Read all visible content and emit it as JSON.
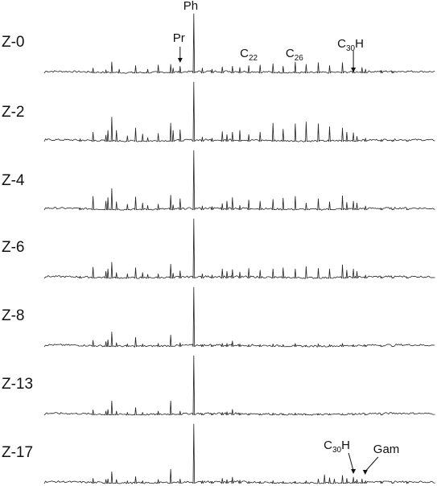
{
  "chart_data": {
    "type": "line",
    "title": "",
    "xlabel": "",
    "ylabel": "",
    "xlim": [
      0,
      100
    ],
    "ylim": [
      0,
      100
    ],
    "traces": [
      {
        "name": "Z-0",
        "peaks": [
          {
            "x": 12.5,
            "y": 10
          },
          {
            "x": 15.8,
            "y": 7
          },
          {
            "x": 17.3,
            "y": 20
          },
          {
            "x": 19.2,
            "y": 8
          },
          {
            "x": 23.4,
            "y": 14
          },
          {
            "x": 26.5,
            "y": 8
          },
          {
            "x": 29.2,
            "y": 15
          },
          {
            "x": 32.4,
            "y": 16
          },
          {
            "x": 33.0,
            "y": 10
          },
          {
            "x": 34.8,
            "y": 13
          },
          {
            "x": 38.3,
            "y": 100
          },
          {
            "x": 40.5,
            "y": 10
          },
          {
            "x": 43.0,
            "y": 8
          },
          {
            "x": 45.6,
            "y": 12
          },
          {
            "x": 48.2,
            "y": 13
          },
          {
            "x": 50.1,
            "y": 11
          },
          {
            "x": 52.4,
            "y": 14
          },
          {
            "x": 55.3,
            "y": 15
          },
          {
            "x": 58.6,
            "y": 17
          },
          {
            "x": 61.2,
            "y": 13
          },
          {
            "x": 64.3,
            "y": 20
          },
          {
            "x": 67.1,
            "y": 16
          },
          {
            "x": 70.2,
            "y": 19
          },
          {
            "x": 73.1,
            "y": 14
          },
          {
            "x": 76.4,
            "y": 19
          },
          {
            "x": 79.2,
            "y": 13
          },
          {
            "x": 81.4,
            "y": 11
          },
          {
            "x": 82.3,
            "y": 8
          },
          {
            "x": 86.4,
            "y": 6
          },
          {
            "x": 89.3,
            "y": 5
          }
        ]
      },
      {
        "name": "Z-2",
        "peaks": [
          {
            "x": 9.2,
            "y": 6
          },
          {
            "x": 12.5,
            "y": 17
          },
          {
            "x": 15.8,
            "y": 12
          },
          {
            "x": 16.3,
            "y": 20
          },
          {
            "x": 17.3,
            "y": 42
          },
          {
            "x": 18.5,
            "y": 20
          },
          {
            "x": 21.3,
            "y": 11
          },
          {
            "x": 23.4,
            "y": 24
          },
          {
            "x": 25.2,
            "y": 14
          },
          {
            "x": 26.5,
            "y": 8
          },
          {
            "x": 29.2,
            "y": 15
          },
          {
            "x": 32.4,
            "y": 32
          },
          {
            "x": 33.0,
            "y": 20
          },
          {
            "x": 34.8,
            "y": 21
          },
          {
            "x": 38.3,
            "y": 100
          },
          {
            "x": 40.5,
            "y": 9
          },
          {
            "x": 43.0,
            "y": 7
          },
          {
            "x": 45.6,
            "y": 18
          },
          {
            "x": 46.8,
            "y": 13
          },
          {
            "x": 48.2,
            "y": 17
          },
          {
            "x": 50.1,
            "y": 20
          },
          {
            "x": 52.4,
            "y": 13
          },
          {
            "x": 55.3,
            "y": 17
          },
          {
            "x": 58.6,
            "y": 32
          },
          {
            "x": 61.2,
            "y": 22
          },
          {
            "x": 64.3,
            "y": 31
          },
          {
            "x": 67.1,
            "y": 34
          },
          {
            "x": 70.2,
            "y": 31
          },
          {
            "x": 73.1,
            "y": 26
          },
          {
            "x": 76.4,
            "y": 24
          },
          {
            "x": 77.5,
            "y": 17
          },
          {
            "x": 79.2,
            "y": 16
          },
          {
            "x": 80.1,
            "y": 10
          },
          {
            "x": 82.3,
            "y": 7
          },
          {
            "x": 86.4,
            "y": 5
          },
          {
            "x": 89.3,
            "y": 4
          },
          {
            "x": 93.0,
            "y": 3
          }
        ]
      },
      {
        "name": "Z-4",
        "peaks": [
          {
            "x": 9.2,
            "y": 5
          },
          {
            "x": 12.5,
            "y": 24
          },
          {
            "x": 15.8,
            "y": 16
          },
          {
            "x": 16.3,
            "y": 22
          },
          {
            "x": 17.3,
            "y": 37
          },
          {
            "x": 18.5,
            "y": 15
          },
          {
            "x": 21.3,
            "y": 11
          },
          {
            "x": 23.4,
            "y": 23
          },
          {
            "x": 25.2,
            "y": 13
          },
          {
            "x": 26.5,
            "y": 9
          },
          {
            "x": 29.2,
            "y": 11
          },
          {
            "x": 32.4,
            "y": 26
          },
          {
            "x": 33.0,
            "y": 10
          },
          {
            "x": 34.8,
            "y": 20
          },
          {
            "x": 38.3,
            "y": 100
          },
          {
            "x": 40.5,
            "y": 8
          },
          {
            "x": 43.0,
            "y": 7
          },
          {
            "x": 45.6,
            "y": 12
          },
          {
            "x": 46.8,
            "y": 16
          },
          {
            "x": 48.2,
            "y": 22
          },
          {
            "x": 50.1,
            "y": 9
          },
          {
            "x": 52.4,
            "y": 18
          },
          {
            "x": 55.3,
            "y": 16
          },
          {
            "x": 58.6,
            "y": 19
          },
          {
            "x": 61.2,
            "y": 21
          },
          {
            "x": 64.3,
            "y": 24
          },
          {
            "x": 67.1,
            "y": 13
          },
          {
            "x": 70.2,
            "y": 20
          },
          {
            "x": 73.1,
            "y": 15
          },
          {
            "x": 76.4,
            "y": 25
          },
          {
            "x": 77.5,
            "y": 14
          },
          {
            "x": 79.2,
            "y": 16
          },
          {
            "x": 80.1,
            "y": 13
          },
          {
            "x": 82.3,
            "y": 8
          },
          {
            "x": 86.4,
            "y": 4
          },
          {
            "x": 89.3,
            "y": 3
          },
          {
            "x": 93.0,
            "y": 3
          }
        ]
      },
      {
        "name": "Z-6",
        "peaks": [
          {
            "x": 9.2,
            "y": 5
          },
          {
            "x": 12.5,
            "y": 20
          },
          {
            "x": 15.8,
            "y": 13
          },
          {
            "x": 16.3,
            "y": 17
          },
          {
            "x": 17.3,
            "y": 28
          },
          {
            "x": 18.5,
            "y": 11
          },
          {
            "x": 21.3,
            "y": 9
          },
          {
            "x": 23.4,
            "y": 19
          },
          {
            "x": 25.2,
            "y": 11
          },
          {
            "x": 26.5,
            "y": 8
          },
          {
            "x": 29.2,
            "y": 9
          },
          {
            "x": 32.4,
            "y": 25
          },
          {
            "x": 33.0,
            "y": 10
          },
          {
            "x": 34.8,
            "y": 14
          },
          {
            "x": 38.3,
            "y": 100
          },
          {
            "x": 40.5,
            "y": 9
          },
          {
            "x": 43.0,
            "y": 7
          },
          {
            "x": 45.6,
            "y": 17
          },
          {
            "x": 46.8,
            "y": 13
          },
          {
            "x": 48.2,
            "y": 16
          },
          {
            "x": 50.1,
            "y": 12
          },
          {
            "x": 52.4,
            "y": 18
          },
          {
            "x": 55.3,
            "y": 15
          },
          {
            "x": 58.6,
            "y": 17
          },
          {
            "x": 61.2,
            "y": 19
          },
          {
            "x": 64.3,
            "y": 17
          },
          {
            "x": 67.1,
            "y": 21
          },
          {
            "x": 70.2,
            "y": 18
          },
          {
            "x": 73.1,
            "y": 17
          },
          {
            "x": 76.4,
            "y": 24
          },
          {
            "x": 77.5,
            "y": 15
          },
          {
            "x": 79.2,
            "y": 17
          },
          {
            "x": 80.1,
            "y": 13
          },
          {
            "x": 82.3,
            "y": 7
          },
          {
            "x": 86.4,
            "y": 4
          },
          {
            "x": 89.3,
            "y": 3
          },
          {
            "x": 93.0,
            "y": 3
          }
        ]
      },
      {
        "name": "Z-8",
        "peaks": [
          {
            "x": 12.5,
            "y": 12
          },
          {
            "x": 15.8,
            "y": 10
          },
          {
            "x": 16.3,
            "y": 13
          },
          {
            "x": 17.3,
            "y": 26
          },
          {
            "x": 18.5,
            "y": 8
          },
          {
            "x": 21.3,
            "y": 6
          },
          {
            "x": 23.4,
            "y": 17
          },
          {
            "x": 25.2,
            "y": 6
          },
          {
            "x": 29.2,
            "y": 7
          },
          {
            "x": 32.4,
            "y": 21
          },
          {
            "x": 34.8,
            "y": 8
          },
          {
            "x": 38.3,
            "y": 100
          },
          {
            "x": 40.5,
            "y": 5
          },
          {
            "x": 43.0,
            "y": 4
          },
          {
            "x": 45.6,
            "y": 7
          },
          {
            "x": 46.8,
            "y": 7
          },
          {
            "x": 48.2,
            "y": 11
          },
          {
            "x": 50.1,
            "y": 6
          },
          {
            "x": 52.4,
            "y": 5
          },
          {
            "x": 55.3,
            "y": 5
          },
          {
            "x": 58.6,
            "y": 6
          },
          {
            "x": 61.2,
            "y": 5
          },
          {
            "x": 64.3,
            "y": 7
          },
          {
            "x": 67.1,
            "y": 4
          },
          {
            "x": 70.2,
            "y": 6
          },
          {
            "x": 73.1,
            "y": 5
          },
          {
            "x": 76.4,
            "y": 7
          },
          {
            "x": 79.2,
            "y": 5
          },
          {
            "x": 82.3,
            "y": 4
          },
          {
            "x": 86.4,
            "y": 3
          },
          {
            "x": 89.3,
            "y": 2
          }
        ]
      },
      {
        "name": "Z-13",
        "peaks": [
          {
            "x": 12.5,
            "y": 10
          },
          {
            "x": 15.8,
            "y": 8
          },
          {
            "x": 16.3,
            "y": 11
          },
          {
            "x": 17.3,
            "y": 25
          },
          {
            "x": 18.5,
            "y": 8
          },
          {
            "x": 21.3,
            "y": 6
          },
          {
            "x": 23.4,
            "y": 14
          },
          {
            "x": 25.2,
            "y": 6
          },
          {
            "x": 29.2,
            "y": 8
          },
          {
            "x": 32.4,
            "y": 25
          },
          {
            "x": 34.8,
            "y": 8
          },
          {
            "x": 38.3,
            "y": 100
          },
          {
            "x": 40.5,
            "y": 4
          },
          {
            "x": 43.0,
            "y": 4
          },
          {
            "x": 45.6,
            "y": 6
          },
          {
            "x": 46.8,
            "y": 7
          },
          {
            "x": 48.2,
            "y": 11
          },
          {
            "x": 50.1,
            "y": 5
          },
          {
            "x": 52.4,
            "y": 4
          },
          {
            "x": 55.3,
            "y": 4
          },
          {
            "x": 58.6,
            "y": 5
          },
          {
            "x": 61.2,
            "y": 4
          },
          {
            "x": 64.3,
            "y": 5
          },
          {
            "x": 67.1,
            "y": 3
          },
          {
            "x": 70.2,
            "y": 4
          },
          {
            "x": 73.1,
            "y": 4
          },
          {
            "x": 76.4,
            "y": 4
          },
          {
            "x": 79.2,
            "y": 3
          },
          {
            "x": 82.3,
            "y": 3
          },
          {
            "x": 86.4,
            "y": 2
          }
        ]
      },
      {
        "name": "Z-17",
        "peaks": [
          {
            "x": 12.5,
            "y": 10
          },
          {
            "x": 15.8,
            "y": 8
          },
          {
            "x": 16.3,
            "y": 9
          },
          {
            "x": 17.3,
            "y": 21
          },
          {
            "x": 18.5,
            "y": 8
          },
          {
            "x": 21.3,
            "y": 6
          },
          {
            "x": 23.4,
            "y": 13
          },
          {
            "x": 25.2,
            "y": 6
          },
          {
            "x": 29.2,
            "y": 8
          },
          {
            "x": 32.4,
            "y": 25
          },
          {
            "x": 34.8,
            "y": 9
          },
          {
            "x": 38.3,
            "y": 100
          },
          {
            "x": 40.5,
            "y": 6
          },
          {
            "x": 43.0,
            "y": 5
          },
          {
            "x": 45.6,
            "y": 10
          },
          {
            "x": 46.8,
            "y": 8
          },
          {
            "x": 48.2,
            "y": 12
          },
          {
            "x": 50.1,
            "y": 7
          },
          {
            "x": 52.4,
            "y": 5
          },
          {
            "x": 55.3,
            "y": 5
          },
          {
            "x": 58.6,
            "y": 6
          },
          {
            "x": 61.2,
            "y": 5
          },
          {
            "x": 64.3,
            "y": 5
          },
          {
            "x": 67.1,
            "y": 6
          },
          {
            "x": 70.2,
            "y": 9
          },
          {
            "x": 71.8,
            "y": 16
          },
          {
            "x": 73.1,
            "y": 11
          },
          {
            "x": 74.3,
            "y": 9
          },
          {
            "x": 76.4,
            "y": 15
          },
          {
            "x": 77.5,
            "y": 10
          },
          {
            "x": 79.2,
            "y": 12
          },
          {
            "x": 80.1,
            "y": 8
          },
          {
            "x": 81.4,
            "y": 9
          },
          {
            "x": 82.3,
            "y": 6
          },
          {
            "x": 86.4,
            "y": 5
          },
          {
            "x": 89.3,
            "y": 3
          },
          {
            "x": 93.0,
            "y": 4
          }
        ]
      }
    ],
    "annotations": [
      {
        "trace": "Z-0",
        "base": "Ph",
        "sub": "",
        "suffix": "",
        "x": 38.3,
        "arrow": false
      },
      {
        "trace": "Z-0",
        "base": "Pr",
        "sub": "",
        "suffix": "",
        "x": 34.8,
        "arrow": true
      },
      {
        "trace": "Z-0",
        "base": "C",
        "sub": "22",
        "suffix": "",
        "x": 52.4,
        "arrow": false
      },
      {
        "trace": "Z-0",
        "base": "C",
        "sub": "26",
        "suffix": "",
        "x": 64.3,
        "arrow": false
      },
      {
        "trace": "Z-0",
        "base": "C",
        "sub": "30",
        "suffix": "H",
        "x": 79.2,
        "arrow": true
      },
      {
        "trace": "Z-17",
        "base": "C",
        "sub": "30",
        "suffix": "H",
        "x": 79.2,
        "arrow": true
      },
      {
        "trace": "Z-17",
        "base": "Gam",
        "sub": "",
        "suffix": "",
        "x": 81.4,
        "arrow": true
      }
    ]
  }
}
